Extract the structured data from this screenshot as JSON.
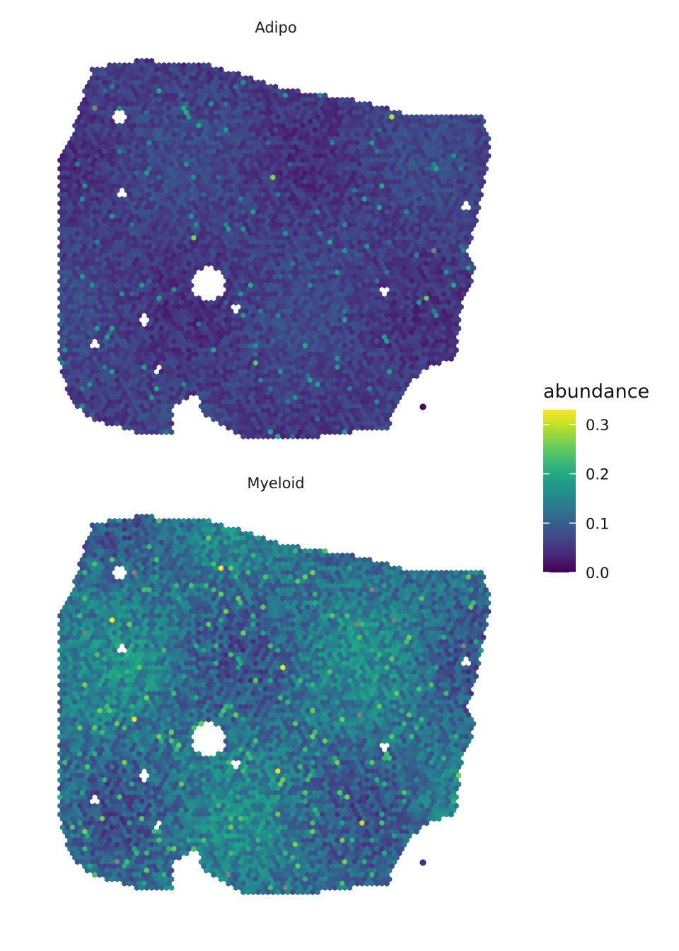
{
  "chart_data": {
    "type": "heatmap",
    "subtype": "spatial hexagonal spot map (faceted)",
    "panels": [
      {
        "title": "Adipo",
        "description_of_values": "abundance per spot, mostly 0.0-0.08, scattered spots 0.15-0.3",
        "abundance_profile": {
          "baseline": 0.02,
          "mean": 0.05,
          "max_observed": 0.3
        },
        "highlights": [
          {
            "value": 0.29
          },
          {
            "value": 0.27
          },
          {
            "value": 0.26
          },
          {
            "value": 0.25
          },
          {
            "value": 0.24
          }
        ]
      },
      {
        "title": "Myeloid",
        "description_of_values": "abundance per spot, broadly 0.05-0.2, hotspots near 0.3",
        "abundance_profile": {
          "baseline": 0.09,
          "mean": 0.11,
          "max_observed": 0.33
        },
        "highlights": [
          {
            "value": 0.33
          },
          {
            "value": 0.33
          },
          {
            "value": 0.32
          },
          {
            "value": 0.32
          },
          {
            "value": 0.31
          },
          {
            "value": 0.3
          }
        ]
      }
    ],
    "legend": {
      "title": "abundance",
      "ticks": [
        "0.0",
        "0.1",
        "0.2",
        "0.3"
      ],
      "tick_values": [
        0.0,
        0.1,
        0.2,
        0.3
      ],
      "range": [
        0.0,
        0.33
      ],
      "colormap": "viridis",
      "placement": "right"
    },
    "colors": {
      "viridis_stops": [
        "#440154",
        "#482475",
        "#414487",
        "#355f8d",
        "#2a788e",
        "#21918c",
        "#22a884",
        "#44bf70",
        "#7ad151",
        "#bddf26",
        "#fde725"
      ],
      "missing_value": "#808080"
    }
  }
}
